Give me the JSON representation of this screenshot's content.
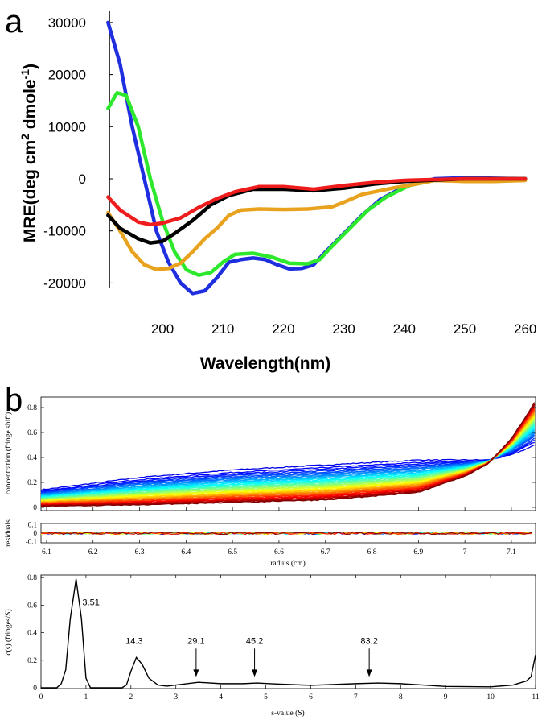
{
  "panel_labels": {
    "a": "a",
    "b": "b"
  },
  "chart_data": [
    {
      "type": "line",
      "panel": "a",
      "xlabel": "Wavelength(nm)",
      "ylabel": "MRE(deg cm",
      "ylabel_sup1": "2",
      "ylabel_mid": " dmole",
      "ylabel_sup2": "-1",
      "ylabel_end": ")",
      "xlim": [
        191,
        260
      ],
      "ylim": [
        -22500,
        30500
      ],
      "xticks": [
        "200",
        "210",
        "220",
        "230",
        "240",
        "250",
        "260"
      ],
      "yticks": [
        "30000",
        "20000",
        "10000",
        "0",
        "-10000",
        "-20000"
      ],
      "series": [
        {
          "name": "blue",
          "color": "#1f2fe0",
          "points": [
            [
              191,
              30000
            ],
            [
              193,
              22000
            ],
            [
              195,
              10000
            ],
            [
              197,
              0
            ],
            [
              199,
              -10000
            ],
            [
              201,
              -16000
            ],
            [
              203,
              -20000
            ],
            [
              205,
              -22000
            ],
            [
              207,
              -21500
            ],
            [
              209,
              -19000
            ],
            [
              211,
              -16000
            ],
            [
              213,
              -15500
            ],
            [
              215,
              -15200
            ],
            [
              217,
              -15500
            ],
            [
              219,
              -16500
            ],
            [
              221,
              -17300
            ],
            [
              223,
              -17200
            ],
            [
              225,
              -16500
            ],
            [
              227,
              -14000
            ],
            [
              230,
              -10500
            ],
            [
              233,
              -7000
            ],
            [
              236,
              -4000
            ],
            [
              240,
              -1500
            ],
            [
              245,
              0
            ],
            [
              250,
              200
            ],
            [
              255,
              100
            ],
            [
              260,
              0
            ]
          ]
        },
        {
          "name": "green",
          "color": "#2ee82e",
          "points": [
            [
              191,
              13500
            ],
            [
              192.5,
              16500
            ],
            [
              194,
              16000
            ],
            [
              196,
              10000
            ],
            [
              198,
              0
            ],
            [
              200,
              -8000
            ],
            [
              202,
              -14000
            ],
            [
              204,
              -17500
            ],
            [
              206,
              -18500
            ],
            [
              208,
              -18000
            ],
            [
              210,
              -16000
            ],
            [
              212,
              -14500
            ],
            [
              215,
              -14300
            ],
            [
              218,
              -15000
            ],
            [
              221,
              -16200
            ],
            [
              224,
              -16300
            ],
            [
              226,
              -15500
            ],
            [
              228,
              -13000
            ],
            [
              231,
              -9500
            ],
            [
              234,
              -6000
            ],
            [
              237,
              -3500
            ],
            [
              241,
              -1200
            ],
            [
              245,
              -300
            ],
            [
              250,
              0
            ],
            [
              260,
              0
            ]
          ]
        },
        {
          "name": "orange",
          "color": "#e8a21e",
          "points": [
            [
              191,
              -6500
            ],
            [
              193,
              -10000
            ],
            [
              195,
              -14000
            ],
            [
              197,
              -16500
            ],
            [
              199,
              -17400
            ],
            [
              201,
              -17200
            ],
            [
              203,
              -16200
            ],
            [
              205,
              -14000
            ],
            [
              207,
              -11500
            ],
            [
              209,
              -9500
            ],
            [
              211,
              -7000
            ],
            [
              213,
              -6000
            ],
            [
              216,
              -5800
            ],
            [
              220,
              -5900
            ],
            [
              224,
              -5800
            ],
            [
              228,
              -5400
            ],
            [
              230,
              -4500
            ],
            [
              233,
              -3000
            ],
            [
              238,
              -1800
            ],
            [
              242,
              -1000
            ],
            [
              245,
              -300
            ],
            [
              250,
              -500
            ],
            [
              255,
              -500
            ],
            [
              260,
              -300
            ]
          ]
        },
        {
          "name": "black",
          "color": "#000000",
          "points": [
            [
              191,
              -7000
            ],
            [
              193,
              -9500
            ],
            [
              196,
              -11500
            ],
            [
              198,
              -12300
            ],
            [
              200,
              -12000
            ],
            [
              202,
              -10500
            ],
            [
              205,
              -8000
            ],
            [
              208,
              -5000
            ],
            [
              211,
              -3200
            ],
            [
              215,
              -2000
            ],
            [
              220,
              -2000
            ],
            [
              225,
              -2300
            ],
            [
              230,
              -1800
            ],
            [
              235,
              -1000
            ],
            [
              240,
              -500
            ],
            [
              250,
              0
            ],
            [
              260,
              0
            ]
          ]
        },
        {
          "name": "red",
          "color": "#ee1c1c",
          "points": [
            [
              191,
              -3500
            ],
            [
              193,
              -6000
            ],
            [
              196,
              -8300
            ],
            [
              198,
              -8800
            ],
            [
              200,
              -8500
            ],
            [
              203,
              -7500
            ],
            [
              206,
              -5500
            ],
            [
              209,
              -3800
            ],
            [
              212,
              -2500
            ],
            [
              216,
              -1500
            ],
            [
              220,
              -1500
            ],
            [
              225,
              -2000
            ],
            [
              230,
              -1300
            ],
            [
              235,
              -700
            ],
            [
              240,
              -300
            ],
            [
              250,
              0
            ],
            [
              260,
              0
            ]
          ]
        }
      ]
    },
    {
      "type": "line",
      "panel": "b-top",
      "ylabel": "concentration (fringe shift)",
      "xlim": [
        6.088,
        7.152
      ],
      "ylim": [
        -0.01,
        0.87
      ],
      "yticks": [
        "0",
        "0.2",
        "0.4",
        "0.6",
        "0.8"
      ],
      "scan_count": 40,
      "radii": [
        6.088,
        6.3,
        6.5,
        6.7,
        6.9,
        7.0,
        7.05,
        7.1,
        7.152
      ],
      "first_scan": [
        0.14,
        0.24,
        0.3,
        0.34,
        0.38,
        0.38,
        0.38,
        0.42,
        0.5
      ],
      "last_scan": [
        0.01,
        0.02,
        0.04,
        0.06,
        0.12,
        0.25,
        0.35,
        0.55,
        0.85
      ]
    },
    {
      "type": "line",
      "panel": "b-residuals",
      "ylabel": "residuals",
      "xlabel": "radius (cm)",
      "xlim": [
        6.088,
        7.152
      ],
      "ylim": [
        -0.1,
        0.1
      ],
      "yticks": [
        "0.1",
        "0",
        "-0.1"
      ],
      "xticks": [
        "6.1",
        "6.2",
        "6.3",
        "6.4",
        "6.5",
        "6.6",
        "6.7",
        "6.8",
        "6.9",
        "7",
        "7.1"
      ]
    },
    {
      "type": "line",
      "panel": "b-bottom",
      "xlabel": "s-value (S)",
      "ylabel": "c(s) (fringes/S)",
      "xlim": [
        0,
        11
      ],
      "ylim": [
        0,
        0.82
      ],
      "xticks": [
        "0",
        "1",
        "2",
        "3",
        "4",
        "5",
        "6",
        "7",
        "8",
        "9",
        "10",
        "11"
      ],
      "yticks": [
        "0",
        "0.2",
        "0.4",
        "0.6",
        "0.8"
      ],
      "points": [
        [
          0,
          0
        ],
        [
          0.35,
          0
        ],
        [
          0.45,
          0.03
        ],
        [
          0.55,
          0.13
        ],
        [
          0.65,
          0.5
        ],
        [
          0.78,
          0.79
        ],
        [
          0.9,
          0.5
        ],
        [
          1.0,
          0.07
        ],
        [
          1.1,
          0
        ],
        [
          1.8,
          0
        ],
        [
          1.9,
          0.02
        ],
        [
          2.0,
          0.12
        ],
        [
          2.12,
          0.22
        ],
        [
          2.25,
          0.17
        ],
        [
          2.4,
          0.07
        ],
        [
          2.6,
          0.02
        ],
        [
          2.8,
          0.012
        ],
        [
          3.0,
          0.02
        ],
        [
          3.5,
          0.04
        ],
        [
          4,
          0.03
        ],
        [
          4.5,
          0.03
        ],
        [
          4.8,
          0.035
        ],
        [
          5.2,
          0.028
        ],
        [
          6,
          0.018
        ],
        [
          7,
          0.03
        ],
        [
          7.5,
          0.035
        ],
        [
          8,
          0.03
        ],
        [
          9,
          0.01
        ],
        [
          10,
          0.007
        ],
        [
          10.5,
          0.02
        ],
        [
          10.8,
          0.05
        ],
        [
          10.9,
          0.08
        ],
        [
          11,
          0.24
        ]
      ],
      "annotations": [
        {
          "text": "3.51",
          "x": 0.92,
          "y": 0.6,
          "arrow": false
        },
        {
          "text": "14.3",
          "x": 1.88,
          "y": 0.32,
          "arrow": false
        },
        {
          "text": "29.1",
          "x": 3.45,
          "y": 0.32,
          "arrow": true,
          "arrow_to": 0.08
        },
        {
          "text": "45.2",
          "x": 4.75,
          "y": 0.32,
          "arrow": true,
          "arrow_to": 0.08
        },
        {
          "text": "83.2",
          "x": 7.3,
          "y": 0.32,
          "arrow": true,
          "arrow_to": 0.08
        }
      ]
    }
  ]
}
